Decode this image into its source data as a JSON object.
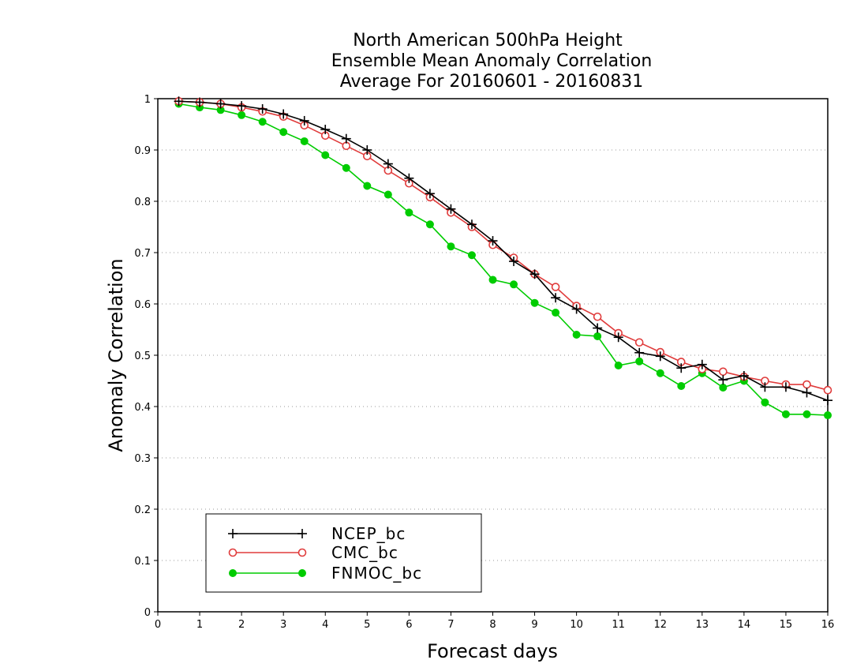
{
  "chart_data": {
    "type": "line",
    "title_lines": [
      "North American 500hPa Height",
      "Ensemble Mean Anomaly Correlation",
      "Average For 20160601 - 20160831"
    ],
    "xlabel": "Forecast days",
    "ylabel": "Anomaly Correlation",
    "xlim": [
      0,
      16
    ],
    "ylim": [
      0,
      1
    ],
    "x_ticks": [
      "0",
      "1",
      "2",
      "3",
      "4",
      "5",
      "6",
      "7",
      "8",
      "9",
      "10",
      "11",
      "12",
      "13",
      "14",
      "15",
      "16"
    ],
    "y_ticks": [
      "0",
      "0.1",
      "0.2",
      "0.3",
      "0.4",
      "0.5",
      "0.6",
      "0.7",
      "0.8",
      "0.9",
      "1"
    ],
    "grid": "horizontal dotted",
    "legend_position": "bottom-left",
    "x": [
      0.5,
      1,
      1.5,
      2,
      2.5,
      3,
      3.5,
      4,
      4.5,
      5,
      5.5,
      6,
      6.5,
      7,
      7.5,
      8,
      8.5,
      9,
      9.5,
      10,
      10.5,
      11,
      11.5,
      12,
      12.5,
      13,
      13.5,
      14,
      14.5,
      15,
      15.5,
      16
    ],
    "series": [
      {
        "name": "NCEP_bc",
        "color": "#000000",
        "marker": "plus",
        "values": [
          0.995,
          0.993,
          0.99,
          0.986,
          0.98,
          0.97,
          0.957,
          0.94,
          0.922,
          0.9,
          0.873,
          0.845,
          0.815,
          0.785,
          0.755,
          0.723,
          0.683,
          0.658,
          0.612,
          0.59,
          0.553,
          0.535,
          0.505,
          0.498,
          0.475,
          0.482,
          0.452,
          0.46,
          0.438,
          0.438,
          0.427,
          0.412
        ]
      },
      {
        "name": "CMC_bc",
        "color": "#e03c3c",
        "marker": "open-circle",
        "values": [
          0.995,
          0.993,
          0.99,
          0.983,
          0.975,
          0.965,
          0.948,
          0.928,
          0.908,
          0.888,
          0.86,
          0.835,
          0.808,
          0.778,
          0.75,
          0.715,
          0.69,
          0.658,
          0.633,
          0.596,
          0.575,
          0.543,
          0.525,
          0.506,
          0.487,
          0.473,
          0.468,
          0.458,
          0.45,
          0.443,
          0.443,
          0.432
        ]
      },
      {
        "name": "FNMOC_bc",
        "color": "#00cc00",
        "marker": "filled-circle",
        "values": [
          0.99,
          0.983,
          0.978,
          0.968,
          0.955,
          0.935,
          0.917,
          0.89,
          0.865,
          0.83,
          0.813,
          0.778,
          0.755,
          0.712,
          0.695,
          0.647,
          0.638,
          0.602,
          0.583,
          0.54,
          0.537,
          0.48,
          0.488,
          0.465,
          0.44,
          0.465,
          0.437,
          0.45,
          0.408,
          0.385,
          0.385,
          0.383
        ]
      }
    ]
  }
}
